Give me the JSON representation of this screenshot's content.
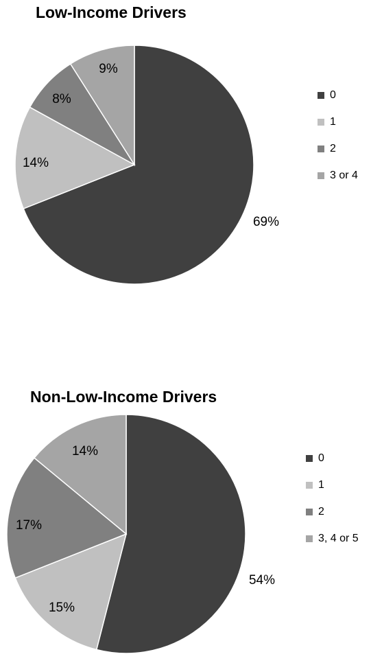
{
  "chart_data": [
    {
      "type": "pie",
      "title": "Low-Income Drivers",
      "categories": [
        "0",
        "1",
        "2",
        "3 or 4"
      ],
      "values": [
        69,
        14,
        8,
        9
      ],
      "labels": [
        "69%",
        "14%",
        "8%",
        "9%"
      ],
      "colors": [
        "#404040",
        "#c0c0c0",
        "#808080",
        "#a5a5a5"
      ],
      "legend_position": "right"
    },
    {
      "type": "pie",
      "title": "Non-Low-Income Drivers",
      "categories": [
        "0",
        "1",
        "2",
        "3, 4 or 5"
      ],
      "values": [
        54,
        15,
        17,
        14
      ],
      "labels": [
        "54%",
        "15%",
        "17%",
        "14%"
      ],
      "colors": [
        "#404040",
        "#c0c0c0",
        "#808080",
        "#a5a5a5"
      ],
      "legend_position": "right"
    }
  ]
}
